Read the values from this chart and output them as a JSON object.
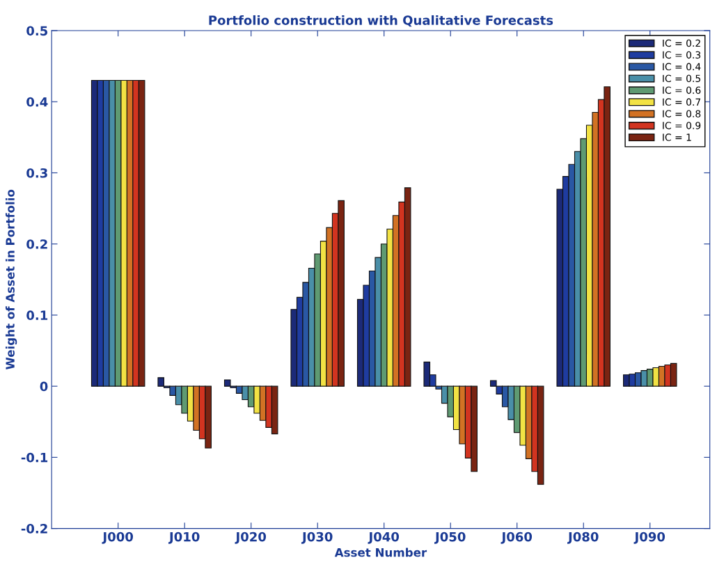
{
  "chart_data": {
    "type": "bar",
    "title": "Portfolio construction with Qualitative Forecasts",
    "xlabel": "Asset Number",
    "ylabel": "Weight of Asset in Portfolio",
    "categories": [
      "J000",
      "J010",
      "J020",
      "J030",
      "J040",
      "J050",
      "J060",
      "J080",
      "J090"
    ],
    "ylim": [
      -0.2,
      0.5
    ],
    "yticks": [
      -0.2,
      -0.1,
      0,
      0.1,
      0.2,
      0.3,
      0.4,
      0.5
    ],
    "grid": false,
    "legend": "top right",
    "series": [
      {
        "name": "IC = 0.2",
        "color": "#1c2a78",
        "values": [
          0.43,
          0.012,
          0.009,
          0.108,
          0.122,
          0.034,
          0.008,
          0.277,
          0.016
        ]
      },
      {
        "name": "IC = 0.3",
        "color": "#1f3ca0",
        "values": [
          0.43,
          -0.002,
          -0.002,
          0.125,
          0.142,
          0.016,
          -0.011,
          0.295,
          0.017
        ]
      },
      {
        "name": "IC = 0.4",
        "color": "#2a58a4",
        "values": [
          0.43,
          -0.013,
          -0.01,
          0.146,
          0.162,
          -0.004,
          -0.029,
          0.312,
          0.019
        ]
      },
      {
        "name": "IC = 0.5",
        "color": "#4a8fa8",
        "values": [
          0.43,
          -0.026,
          -0.019,
          0.166,
          0.181,
          -0.024,
          -0.047,
          0.33,
          0.022
        ]
      },
      {
        "name": "IC = 0.6",
        "color": "#5f9a72",
        "values": [
          0.43,
          -0.038,
          -0.029,
          0.186,
          0.2,
          -0.043,
          -0.065,
          0.348,
          0.024
        ]
      },
      {
        "name": "IC = 0.7",
        "color": "#f2e244",
        "values": [
          0.43,
          -0.049,
          -0.038,
          0.204,
          0.221,
          -0.061,
          -0.083,
          0.367,
          0.026
        ]
      },
      {
        "name": "IC = 0.8",
        "color": "#d27224",
        "values": [
          0.43,
          -0.062,
          -0.048,
          0.223,
          0.24,
          -0.081,
          -0.102,
          0.385,
          0.028
        ]
      },
      {
        "name": "IC = 0.9",
        "color": "#d23420",
        "values": [
          0.43,
          -0.074,
          -0.058,
          0.243,
          0.259,
          -0.101,
          -0.12,
          0.403,
          0.03
        ]
      },
      {
        "name": "IC = 1",
        "color": "#7a2412",
        "values": [
          0.43,
          -0.087,
          -0.067,
          0.261,
          0.279,
          -0.12,
          -0.138,
          0.421,
          0.032
        ]
      }
    ]
  }
}
